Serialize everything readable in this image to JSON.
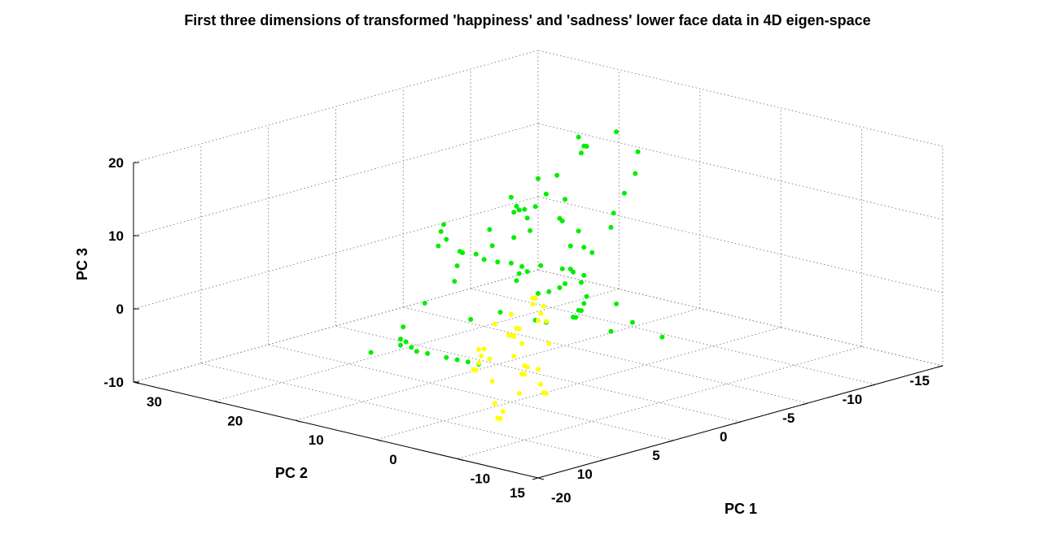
{
  "chart_data": {
    "type": "scatter",
    "projection": "3d",
    "title": "First three dimensions of transformed 'happiness' and 'sadness' lower face data in 4D eigen-space",
    "xlabel": "PC 1",
    "ylabel": "PC 2",
    "zlabel": "PC 3",
    "xlim": [
      -20,
      30
    ],
    "ylim": [
      -15,
      15
    ],
    "zlim": [
      -10,
      20
    ],
    "xticks": [
      "-20",
      "-10",
      "0",
      "10",
      "20",
      "30"
    ],
    "yticks": [
      "-15",
      "-10",
      "-5",
      "0",
      "5",
      "10",
      "15"
    ],
    "zticks": [
      "-10",
      "0",
      "10",
      "20"
    ],
    "grid": true,
    "legend": "none",
    "series": [
      {
        "color": "#00ee00",
        "points": [
          [
            16,
            -12,
            1
          ],
          [
            14,
            -11,
            4
          ],
          [
            11,
            -10,
            8
          ],
          [
            8,
            -9,
            12
          ],
          [
            6,
            -8,
            16
          ],
          [
            7,
            -7,
            19
          ],
          [
            9,
            -6,
            17
          ],
          [
            11,
            -5,
            13
          ],
          [
            12,
            -4,
            9
          ],
          [
            13,
            -3,
            5
          ],
          [
            15,
            -2,
            2
          ],
          [
            17,
            -1,
            -1
          ],
          [
            19,
            0,
            -4
          ],
          [
            20,
            1,
            -7
          ],
          [
            18,
            2,
            -8
          ],
          [
            15,
            3,
            -8
          ],
          [
            12,
            4,
            -7
          ],
          [
            8,
            5,
            -6
          ],
          [
            5,
            6,
            -5
          ],
          [
            2,
            7,
            -4
          ],
          [
            -1,
            8,
            -3
          ],
          [
            20,
            -13,
            -4
          ],
          [
            21,
            -12,
            -6
          ],
          [
            19,
            -10,
            -7
          ],
          [
            17,
            -8,
            -6
          ],
          [
            18,
            -7,
            -3
          ],
          [
            16,
            -9,
            0
          ],
          [
            12,
            -6,
            6
          ],
          [
            10,
            -5,
            10
          ],
          [
            9,
            -3,
            12
          ],
          [
            8,
            -1,
            10
          ],
          [
            9,
            1,
            7
          ],
          [
            10,
            3,
            5
          ],
          [
            8,
            4,
            8
          ],
          [
            6,
            3,
            11
          ],
          [
            5,
            1,
            13
          ],
          [
            4,
            -1,
            11
          ],
          [
            5,
            -3,
            8
          ],
          [
            6,
            -4,
            5
          ],
          [
            8,
            -2,
            3
          ],
          [
            10,
            0,
            4
          ],
          [
            11,
            2,
            6
          ],
          [
            9,
            5,
            9
          ],
          [
            7,
            6,
            12
          ],
          [
            5,
            7,
            14
          ],
          [
            3,
            8,
            13
          ],
          [
            1,
            7,
            11
          ],
          [
            0,
            5,
            9
          ],
          [
            2,
            3,
            7
          ],
          [
            4,
            2,
            5
          ],
          [
            6,
            1,
            3
          ],
          [
            5,
            0,
            1
          ],
          [
            3,
            -2,
            2
          ],
          [
            1,
            -1,
            4
          ],
          [
            -1,
            1,
            6
          ],
          [
            -3,
            3,
            8
          ],
          [
            -5,
            4,
            7
          ],
          [
            -6,
            3,
            5
          ],
          [
            -4,
            2,
            3
          ],
          [
            -2,
            1,
            1
          ],
          [
            0,
            0,
            0
          ],
          [
            2,
            -1,
            -2
          ],
          [
            4,
            -2,
            -3
          ],
          [
            1,
            4,
            16
          ],
          [
            0,
            5,
            18
          ],
          [
            -2,
            6,
            17
          ],
          [
            -4,
            6,
            15
          ],
          [
            13,
            -8,
            14
          ],
          [
            11,
            -7,
            16
          ],
          [
            10,
            -6,
            18
          ],
          [
            -8,
            2,
            4
          ],
          [
            -10,
            2,
            2
          ],
          [
            -12,
            1,
            0
          ],
          [
            -9,
            3,
            1
          ],
          [
            7,
            9,
            -2
          ],
          [
            9,
            10,
            -3
          ],
          [
            4,
            10,
            -1
          ],
          [
            14,
            -4,
            8
          ],
          [
            15,
            -6,
            11
          ],
          [
            3,
            4,
            1
          ],
          [
            5,
            5,
            0
          ],
          [
            -3,
            5,
            2
          ],
          [
            -6,
            6,
            3
          ],
          [
            12,
            6,
            -4
          ]
        ]
      },
      {
        "color": "#ffff00",
        "points": [
          [
            -5,
            8,
            2
          ],
          [
            -7,
            9,
            3
          ],
          [
            -9,
            10,
            5
          ],
          [
            -11,
            11,
            6
          ],
          [
            -13,
            12,
            5
          ],
          [
            -15,
            13,
            3
          ],
          [
            -16,
            14,
            0
          ],
          [
            -14,
            14,
            -3
          ],
          [
            -12,
            13,
            -5
          ],
          [
            -10,
            12,
            -6
          ],
          [
            -8,
            11,
            -5
          ],
          [
            -6,
            10,
            -3
          ],
          [
            -4,
            9,
            -1
          ],
          [
            -3,
            7,
            1
          ],
          [
            -5,
            6,
            3
          ],
          [
            -7,
            7,
            5
          ],
          [
            -9,
            8,
            7
          ],
          [
            -11,
            9,
            6
          ],
          [
            -13,
            10,
            4
          ],
          [
            -12,
            11,
            1
          ],
          [
            -10,
            10,
            -1
          ],
          [
            -8,
            9,
            -2
          ],
          [
            -2,
            6,
            0
          ],
          [
            0,
            5,
            2
          ],
          [
            -1,
            4,
            4
          ],
          [
            -3,
            5,
            5
          ],
          [
            -6,
            7,
            6
          ],
          [
            -15,
            12,
            2
          ],
          [
            -17,
            13,
            1
          ],
          [
            -16,
            12,
            -1
          ],
          [
            -14,
            11,
            -2
          ],
          [
            -12,
            12,
            3
          ],
          [
            -10,
            13,
            4
          ],
          [
            -8,
            12,
            2
          ],
          [
            -6,
            11,
            0
          ],
          [
            -4,
            10,
            -2
          ],
          [
            -2,
            9,
            -3
          ],
          [
            -1,
            8,
            -1
          ],
          [
            -3,
            8,
            3
          ]
        ]
      }
    ]
  }
}
